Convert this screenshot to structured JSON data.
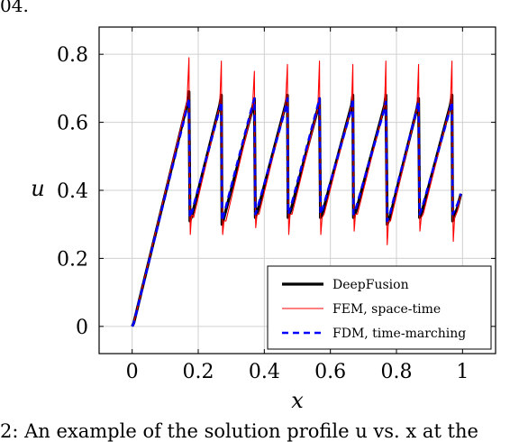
{
  "header_fragment": "04.",
  "caption_fragment": "2: An example of the solution profile u vs. x at the",
  "chart_data": {
    "type": "line",
    "xlabel": "x",
    "ylabel": "u",
    "xlim": [
      -0.1,
      1.1
    ],
    "ylim": [
      -0.08,
      0.88
    ],
    "xticks": [
      0,
      0.2,
      0.4,
      0.6,
      0.8,
      1
    ],
    "xtick_labels": [
      "0",
      "0.2",
      "0.4",
      "0.6",
      "0.8",
      "1"
    ],
    "yticks": [
      0,
      0.2,
      0.4,
      0.6,
      0.8
    ],
    "ytick_labels": [
      "0",
      "0.2",
      "0.4",
      "0.6",
      "0.8"
    ],
    "grid": true,
    "legend_position": "bottom-right",
    "series": [
      {
        "name": "DeepFusion",
        "color": "#000000",
        "style": "solid-thick",
        "x": [
          0,
          0.005,
          0.01,
          0.168,
          0.172,
          0.175,
          0.182,
          0.265,
          0.27,
          0.272,
          0.278,
          0.364,
          0.37,
          0.373,
          0.38,
          0.464,
          0.47,
          0.472,
          0.48,
          0.562,
          0.567,
          0.57,
          0.578,
          0.664,
          0.668,
          0.67,
          0.678,
          0.764,
          0.768,
          0.772,
          0.78,
          0.862,
          0.867,
          0.87,
          0.878,
          0.963,
          0.968,
          0.97,
          0.985,
          0.995
        ],
        "y": [
          0,
          0.01,
          0.03,
          0.66,
          0.69,
          0.31,
          0.33,
          0.65,
          0.68,
          0.3,
          0.32,
          0.64,
          0.67,
          0.32,
          0.34,
          0.65,
          0.68,
          0.32,
          0.34,
          0.64,
          0.67,
          0.32,
          0.34,
          0.65,
          0.68,
          0.32,
          0.34,
          0.65,
          0.68,
          0.3,
          0.32,
          0.64,
          0.67,
          0.32,
          0.34,
          0.65,
          0.68,
          0.31,
          0.35,
          0.39
        ]
      },
      {
        "name": "FEM, space-time",
        "color": "#ff0000",
        "style": "solid-thin",
        "x": [
          0,
          0.005,
          0.01,
          0.166,
          0.172,
          0.174,
          0.176,
          0.18,
          0.186,
          0.265,
          0.27,
          0.272,
          0.274,
          0.278,
          0.284,
          0.364,
          0.37,
          0.372,
          0.374,
          0.378,
          0.384,
          0.464,
          0.47,
          0.472,
          0.474,
          0.478,
          0.484,
          0.562,
          0.567,
          0.569,
          0.571,
          0.575,
          0.581,
          0.664,
          0.668,
          0.67,
          0.672,
          0.676,
          0.682,
          0.764,
          0.768,
          0.77,
          0.772,
          0.776,
          0.782,
          0.862,
          0.867,
          0.869,
          0.871,
          0.875,
          0.881,
          0.963,
          0.968,
          0.97,
          0.972,
          0.976,
          0.985,
          0.995
        ],
        "y": [
          0,
          0.01,
          0.03,
          0.66,
          0.79,
          0.4,
          0.27,
          0.33,
          0.32,
          0.65,
          0.78,
          0.38,
          0.27,
          0.31,
          0.31,
          0.64,
          0.75,
          0.4,
          0.29,
          0.33,
          0.33,
          0.65,
          0.77,
          0.4,
          0.27,
          0.33,
          0.33,
          0.64,
          0.78,
          0.4,
          0.27,
          0.32,
          0.33,
          0.65,
          0.77,
          0.4,
          0.28,
          0.33,
          0.33,
          0.65,
          0.78,
          0.38,
          0.24,
          0.31,
          0.31,
          0.64,
          0.77,
          0.4,
          0.28,
          0.32,
          0.33,
          0.65,
          0.78,
          0.38,
          0.25,
          0.32,
          0.34,
          0.39
        ]
      },
      {
        "name": "FDM, time-marching",
        "color": "#0000ff",
        "style": "dashed",
        "x": [
          0,
          0.005,
          0.01,
          0.168,
          0.172,
          0.175,
          0.182,
          0.265,
          0.27,
          0.272,
          0.278,
          0.364,
          0.37,
          0.373,
          0.38,
          0.464,
          0.47,
          0.472,
          0.48,
          0.562,
          0.567,
          0.57,
          0.578,
          0.664,
          0.668,
          0.67,
          0.678,
          0.764,
          0.768,
          0.772,
          0.78,
          0.862,
          0.867,
          0.87,
          0.878,
          0.963,
          0.968,
          0.97,
          0.985,
          0.995
        ],
        "y": [
          0,
          0.01,
          0.03,
          0.65,
          0.67,
          0.32,
          0.34,
          0.64,
          0.66,
          0.31,
          0.33,
          0.65,
          0.67,
          0.33,
          0.35,
          0.64,
          0.67,
          0.33,
          0.35,
          0.65,
          0.67,
          0.33,
          0.35,
          0.64,
          0.67,
          0.33,
          0.35,
          0.64,
          0.66,
          0.31,
          0.33,
          0.64,
          0.66,
          0.33,
          0.35,
          0.64,
          0.66,
          0.33,
          0.36,
          0.39
        ]
      }
    ]
  }
}
